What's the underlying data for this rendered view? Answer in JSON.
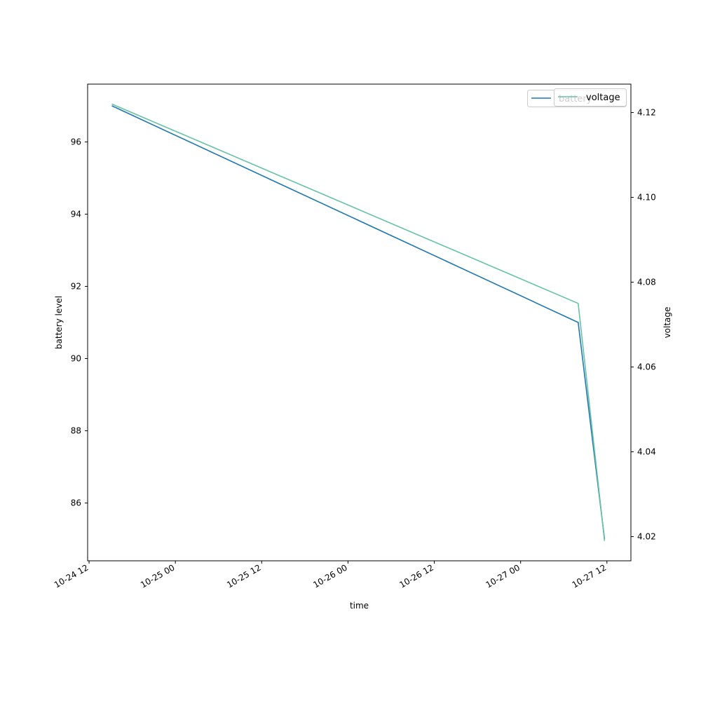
{
  "chart_data": {
    "type": "line",
    "xlabel": "time",
    "ylabel_left": "battery level",
    "ylabel_right": "voltage",
    "x_tick_labels": [
      "10-24 12",
      "10-25 00",
      "10-25 12",
      "10-26 00",
      "10-26 12",
      "10-27 00",
      "10-27 12"
    ],
    "x_ticks": [
      "2023-10-24 12:00",
      "2023-10-25 00:00",
      "2023-10-25 12:00",
      "2023-10-26 00:00",
      "2023-10-26 12:00",
      "2023-10-27 00:00",
      "2023-10-27 12:00"
    ],
    "x": [
      "2023-10-24 15:10",
      "2023-10-27 08:00",
      "2023-10-27 11:40"
    ],
    "x_range": [
      "2023-10-24 11:48",
      "2023-10-27 15:20"
    ],
    "series": [
      {
        "name": "battery",
        "axis": "left",
        "color": "#1f77b4",
        "values": [
          97,
          91,
          85
        ]
      },
      {
        "name": "voltage",
        "axis": "right",
        "color": "#66c2a5",
        "values": [
          4.122,
          4.075,
          4.019
        ]
      }
    ],
    "left_axis": {
      "ylim": [
        84.4,
        97.6
      ],
      "ticks": [
        86,
        88,
        90,
        92,
        94,
        96
      ]
    },
    "right_axis": {
      "ylim": [
        4.0143,
        4.1267
      ],
      "ticks": [
        4.02,
        4.04,
        4.06,
        4.08,
        4.1,
        4.12
      ]
    },
    "legends": [
      {
        "placement": "top-right",
        "entries": [
          "battery"
        ]
      },
      {
        "placement": "top-right",
        "entries": [
          "voltage"
        ]
      }
    ],
    "grid": false
  }
}
